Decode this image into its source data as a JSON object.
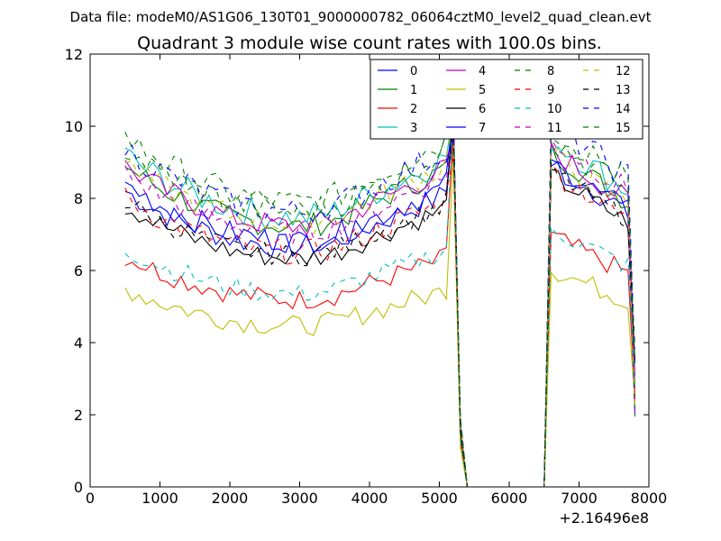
{
  "chart_data": {
    "type": "line",
    "suptitle": "Data file: modeM0/AS1G06_130T01_9000000782_06064cztM0_level2_quad_clean.evt",
    "title": "Quadrant 3 module wise count rates with 100.0s bins.",
    "xlabel": "",
    "ylabel": "",
    "x_offset_label": "+2.16496e8",
    "xlim": [
      0,
      8000
    ],
    "ylim": [
      0,
      12
    ],
    "xticks": [
      0,
      1000,
      2000,
      3000,
      4000,
      5000,
      6000,
      7000,
      8000
    ],
    "yticks": [
      0,
      2,
      4,
      6,
      8,
      10,
      12
    ],
    "xtick_labels": [
      "0",
      "1000",
      "2000",
      "3000",
      "4000",
      "5000",
      "6000",
      "7000",
      "8000"
    ],
    "ytick_labels": [
      "0",
      "2",
      "4",
      "6",
      "8",
      "10",
      "12"
    ],
    "grid": false,
    "legend_placement": "top-right",
    "legend_columns": 4,
    "x": [
      500,
      600,
      700,
      800,
      900,
      1000,
      1100,
      1200,
      1300,
      1400,
      1500,
      1600,
      1700,
      1800,
      1900,
      2000,
      2100,
      2200,
      2300,
      2400,
      2500,
      2600,
      2700,
      2800,
      2900,
      3000,
      3100,
      3200,
      3300,
      3400,
      3500,
      3600,
      3700,
      3800,
      3900,
      4000,
      4100,
      4200,
      4300,
      4400,
      4500,
      4600,
      4700,
      4800,
      4900,
      5000,
      5100,
      5200,
      5300,
      5400,
      5500,
      5600,
      5700,
      5800,
      5900,
      6000,
      6100,
      6200,
      6300,
      6400,
      6500,
      6600,
      6700,
      6800,
      6900,
      7000,
      7100,
      7200,
      7300,
      7400,
      7500,
      7600,
      7700,
      7800
    ],
    "series": [
      {
        "name": "0",
        "color": "#0000ff",
        "dash": "solid",
        "base": 8.2,
        "level2": 8.0,
        "amp": 0.35
      },
      {
        "name": "1",
        "color": "#008000",
        "dash": "solid",
        "base": 8.9,
        "level2": 8.3,
        "amp": 0.35
      },
      {
        "name": "2",
        "color": "#ff0000",
        "dash": "solid",
        "base": 6.4,
        "level2": 6.2,
        "amp": 0.3
      },
      {
        "name": "3",
        "color": "#00bfbf",
        "dash": "solid",
        "base": 9.2,
        "level2": 8.6,
        "amp": 0.4
      },
      {
        "name": "4",
        "color": "#bf00bf",
        "dash": "solid",
        "base": 8.9,
        "level2": 8.3,
        "amp": 0.35
      },
      {
        "name": "5",
        "color": "#bfbf00",
        "dash": "solid",
        "base": 5.5,
        "level2": 5.4,
        "amp": 0.3
      },
      {
        "name": "6",
        "color": "#000000",
        "dash": "solid",
        "base": 7.8,
        "level2": 7.7,
        "amp": 0.3
      },
      {
        "name": "7",
        "color": "#0000ff",
        "dash": "solid",
        "base": 8.4,
        "level2": 8.0,
        "amp": 0.35
      },
      {
        "name": "8",
        "color": "#008000",
        "dash": "dashed",
        "base": 9.7,
        "level2": 8.6,
        "amp": 0.4
      },
      {
        "name": "9",
        "color": "#ff0000",
        "dash": "dashed",
        "base": 8.0,
        "level2": 7.8,
        "amp": 0.35
      },
      {
        "name": "10",
        "color": "#00bfbf",
        "dash": "dashed",
        "base": 6.6,
        "level2": 6.4,
        "amp": 0.3
      },
      {
        "name": "11",
        "color": "#bf00bf",
        "dash": "dashed",
        "base": 8.7,
        "level2": 8.6,
        "amp": 0.35
      },
      {
        "name": "12",
        "color": "#bfbf00",
        "dash": "dashed",
        "base": 9.0,
        "level2": 8.2,
        "amp": 0.35
      },
      {
        "name": "13",
        "color": "#000000",
        "dash": "dashed",
        "base": 7.9,
        "level2": 7.8,
        "amp": 0.3
      },
      {
        "name": "14",
        "color": "#0000ff",
        "dash": "dashed",
        "base": 9.4,
        "level2": 9.0,
        "amp": 0.4
      },
      {
        "name": "15",
        "color": "#008000",
        "dash": "dashed",
        "base": 9.4,
        "level2": 8.9,
        "amp": 0.4
      }
    ],
    "gap": {
      "zero_from": 5400,
      "zero_to": 6500,
      "peak_x": 5200,
      "end_x": 7800
    },
    "dip_profile": [
      [
        500,
        1.0
      ],
      [
        1000,
        0.93
      ],
      [
        1500,
        0.88
      ],
      [
        2000,
        0.84
      ],
      [
        2500,
        0.82
      ],
      [
        3000,
        0.81
      ],
      [
        3500,
        0.83
      ],
      [
        4000,
        0.88
      ],
      [
        4500,
        0.93
      ],
      [
        5000,
        0.98
      ],
      [
        5200,
        1.02
      ],
      [
        5300,
        0.2
      ],
      [
        5400,
        0.0
      ]
    ]
  }
}
